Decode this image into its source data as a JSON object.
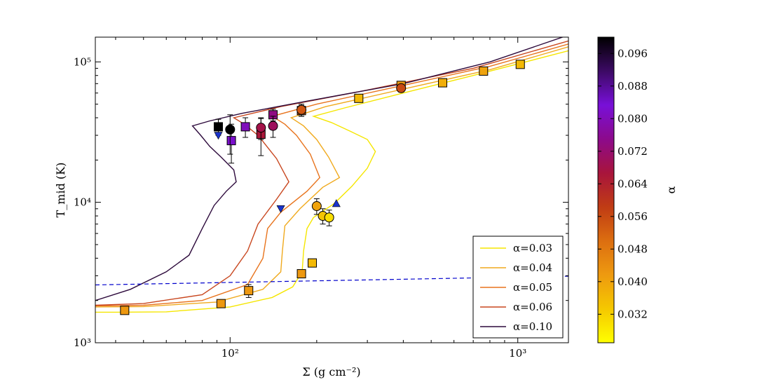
{
  "chart_data": {
    "type": "line",
    "xlabel": "Σ (g cm⁻²)",
    "ylabel": "T_mid (K)",
    "xscale": "log",
    "yscale": "log",
    "xlim": [
      34,
      1500
    ],
    "ylim": [
      1000,
      150000
    ],
    "x_ticks": [
      {
        "value": 100,
        "label": "10²"
      },
      {
        "value": 1000,
        "label": "10³"
      }
    ],
    "y_ticks": [
      {
        "value": 1000,
        "label": "10³"
      },
      {
        "value": 10000,
        "label": "10⁴"
      },
      {
        "value": 100000,
        "label": "10⁵"
      }
    ],
    "series": [
      {
        "name": "α=0.03",
        "alpha": 0.03,
        "color": "#f5e600",
        "points": [
          [
            34,
            1650
          ],
          [
            40,
            1650
          ],
          [
            60,
            1660
          ],
          [
            100,
            1800
          ],
          [
            140,
            2100
          ],
          [
            165,
            2500
          ],
          [
            178,
            3200
          ],
          [
            180,
            4500
          ],
          [
            185,
            6500
          ],
          [
            195,
            7800
          ],
          [
            230,
            9800
          ],
          [
            265,
            13000
          ],
          [
            300,
            17500
          ],
          [
            320,
            23000
          ],
          [
            300,
            28000
          ],
          [
            262,
            32000
          ],
          [
            225,
            37000
          ],
          [
            195,
            41000
          ],
          [
            250,
            47000
          ],
          [
            400,
            60000
          ],
          [
            700,
            80000
          ],
          [
            1500,
            120000
          ]
        ]
      },
      {
        "name": "α=0.04",
        "alpha": 0.04,
        "color": "#f0aa1e",
        "points": [
          [
            34,
            1800
          ],
          [
            50,
            1810
          ],
          [
            90,
            1950
          ],
          [
            130,
            2400
          ],
          [
            150,
            3200
          ],
          [
            152,
            4500
          ],
          [
            155,
            6800
          ],
          [
            175,
            9000
          ],
          [
            210,
            12800
          ],
          [
            240,
            15000
          ],
          [
            220,
            21000
          ],
          [
            200,
            28000
          ],
          [
            180,
            35000
          ],
          [
            163,
            40000
          ],
          [
            215,
            48000
          ],
          [
            400,
            64000
          ],
          [
            800,
            88000
          ],
          [
            1500,
            128000
          ]
        ]
      },
      {
        "name": "α=0.05",
        "alpha": 0.05,
        "color": "#e8741e",
        "points": [
          [
            34,
            1830
          ],
          [
            50,
            1850
          ],
          [
            80,
            2000
          ],
          [
            115,
            2600
          ],
          [
            130,
            4000
          ],
          [
            135,
            6500
          ],
          [
            150,
            8500
          ],
          [
            185,
            12000
          ],
          [
            205,
            15000
          ],
          [
            190,
            22000
          ],
          [
            170,
            30000
          ],
          [
            155,
            36000
          ],
          [
            140,
            41000
          ],
          [
            200,
            50000
          ],
          [
            400,
            68000
          ],
          [
            800,
            93000
          ],
          [
            1500,
            134000
          ]
        ]
      },
      {
        "name": "α=0.06",
        "alpha": 0.06,
        "color": "#c8461e",
        "points": [
          [
            34,
            1850
          ],
          [
            50,
            1900
          ],
          [
            80,
            2200
          ],
          [
            100,
            3000
          ],
          [
            115,
            4500
          ],
          [
            125,
            7000
          ],
          [
            145,
            10500
          ],
          [
            160,
            14000
          ],
          [
            145,
            20500
          ],
          [
            125,
            30000
          ],
          [
            112,
            36000
          ],
          [
            103,
            40000
          ],
          [
            150,
            48000
          ],
          [
            300,
            63000
          ],
          [
            700,
            90000
          ],
          [
            1500,
            141000
          ]
        ]
      },
      {
        "name": "α=0.10",
        "alpha": 0.1,
        "color": "#2d0a3c",
        "points": [
          [
            34,
            2000
          ],
          [
            45,
            2400
          ],
          [
            60,
            3200
          ],
          [
            72,
            4200
          ],
          [
            80,
            6500
          ],
          [
            88,
            9500
          ],
          [
            97,
            12000
          ],
          [
            105,
            14000
          ],
          [
            103,
            17000
          ],
          [
            93,
            21000
          ],
          [
            85,
            25000
          ],
          [
            79,
            30000
          ],
          [
            74,
            35000
          ],
          [
            85,
            38000
          ],
          [
            110,
            43000
          ],
          [
            180,
            52000
          ],
          [
            400,
            70000
          ],
          [
            800,
            100000
          ],
          [
            1500,
            155000
          ]
        ]
      }
    ],
    "threshold_line": {
      "name": "dashed threshold",
      "color": "#0000cc",
      "points": [
        [
          34,
          2580
        ],
        [
          1500,
          2980
        ]
      ]
    },
    "markers": [
      {
        "shape": "square",
        "x": 43,
        "y": 1700,
        "alpha": 0.042,
        "yerr": [
          1600,
          1800
        ]
      },
      {
        "shape": "square",
        "x": 93,
        "y": 1900,
        "alpha": 0.042,
        "yerr": [
          1800,
          2000
        ]
      },
      {
        "shape": "square",
        "x": 116,
        "y": 2350,
        "alpha": 0.042,
        "yerr": [
          2100,
          2600
        ]
      },
      {
        "shape": "square",
        "x": 177,
        "y": 3100,
        "alpha": 0.042,
        "yerr": [
          2900,
          3300
        ]
      },
      {
        "shape": "square",
        "x": 193,
        "y": 3700,
        "alpha": 0.036,
        "yerr": [
          3500,
          3900
        ]
      },
      {
        "shape": "square",
        "x": 280,
        "y": 55000,
        "alpha": 0.036,
        "yerr": [
          52000,
          58000
        ]
      },
      {
        "shape": "square",
        "x": 393,
        "y": 68000,
        "alpha": 0.042,
        "yerr": [
          65000,
          71000
        ]
      },
      {
        "shape": "square",
        "x": 548,
        "y": 71000,
        "alpha": 0.038,
        "yerr": [
          67000,
          76000
        ]
      },
      {
        "shape": "square",
        "x": 760,
        "y": 86000,
        "alpha": 0.04,
        "yerr": [
          81000,
          91000
        ]
      },
      {
        "shape": "square",
        "x": 1020,
        "y": 96000,
        "alpha": 0.036,
        "yerr": [
          90000,
          102000
        ]
      },
      {
        "shape": "square",
        "x": 177,
        "y": 45000,
        "alpha": 0.052,
        "yerr": [
          41000,
          49000
        ]
      },
      {
        "shape": "square",
        "x": 91,
        "y": 34500,
        "alpha": 0.1,
        "yerr": [
          30000,
          39000
        ]
      },
      {
        "shape": "square",
        "x": 101,
        "y": 27500,
        "alpha": 0.082,
        "yerr": [
          19000,
          36000
        ]
      },
      {
        "shape": "square",
        "x": 113,
        "y": 34500,
        "alpha": 0.08,
        "yerr": [
          29000,
          40000
        ]
      },
      {
        "shape": "square",
        "x": 128,
        "y": 30500,
        "alpha": 0.066,
        "yerr": [
          21500,
          39500
        ]
      },
      {
        "shape": "square",
        "x": 141,
        "y": 42000,
        "alpha": 0.074,
        "yerr": [
          38000,
          46000
        ]
      },
      {
        "shape": "circle",
        "x": 100,
        "y": 33000,
        "alpha": 0.1,
        "yerr": [
          22000,
          42000
        ]
      },
      {
        "shape": "circle",
        "x": 128,
        "y": 34000,
        "alpha": 0.068,
        "yerr": [
          28000,
          40000
        ]
      },
      {
        "shape": "circle",
        "x": 141,
        "y": 35000,
        "alpha": 0.07,
        "yerr": [
          29000,
          41000
        ]
      },
      {
        "shape": "circle",
        "x": 177,
        "y": 45500,
        "alpha": 0.054,
        "yerr": [
          41000,
          50000
        ]
      },
      {
        "shape": "circle",
        "x": 393,
        "y": 65000,
        "alpha": 0.056,
        "yerr": [
          61000,
          69000
        ]
      },
      {
        "shape": "circle",
        "x": 200,
        "y": 9400,
        "alpha": 0.04,
        "yerr": [
          8200,
          10600
        ]
      },
      {
        "shape": "circle",
        "x": 210,
        "y": 8000,
        "alpha": 0.034,
        "yerr": [
          7000,
          9000
        ]
      },
      {
        "shape": "circle",
        "x": 221,
        "y": 7800,
        "alpha": 0.03,
        "yerr": [
          6800,
          8800
        ]
      },
      {
        "shape": "triangle-down",
        "x": 91,
        "y": 30000,
        "color": "#1a33cc"
      },
      {
        "shape": "triangle-down",
        "x": 150,
        "y": 9000,
        "color": "#1a33cc"
      },
      {
        "shape": "triangle-up",
        "x": 234,
        "y": 9800,
        "color": "#1a33cc"
      }
    ],
    "legend": {
      "position": "lower-right",
      "entries": [
        {
          "label": "α=0.03",
          "color": "#f5e600"
        },
        {
          "label": "α=0.04",
          "color": "#f0aa1e"
        },
        {
          "label": "α=0.05",
          "color": "#e8741e"
        },
        {
          "label": "α=0.06",
          "color": "#c8461e"
        },
        {
          "label": "α=0.10",
          "color": "#2d0a3c"
        }
      ]
    },
    "colorbar": {
      "label": "α",
      "range": [
        0.025,
        0.1
      ],
      "ticks": [
        "0.032",
        "0.040",
        "0.048",
        "0.056",
        "0.064",
        "0.072",
        "0.080",
        "0.088",
        "0.096"
      ],
      "colors": [
        "#ffff00",
        "#f5c800",
        "#ee9a10",
        "#dc6e10",
        "#c03c14",
        "#a8143c",
        "#8c0a8c",
        "#7810d8",
        "#3c0a64",
        "#000000"
      ]
    }
  }
}
